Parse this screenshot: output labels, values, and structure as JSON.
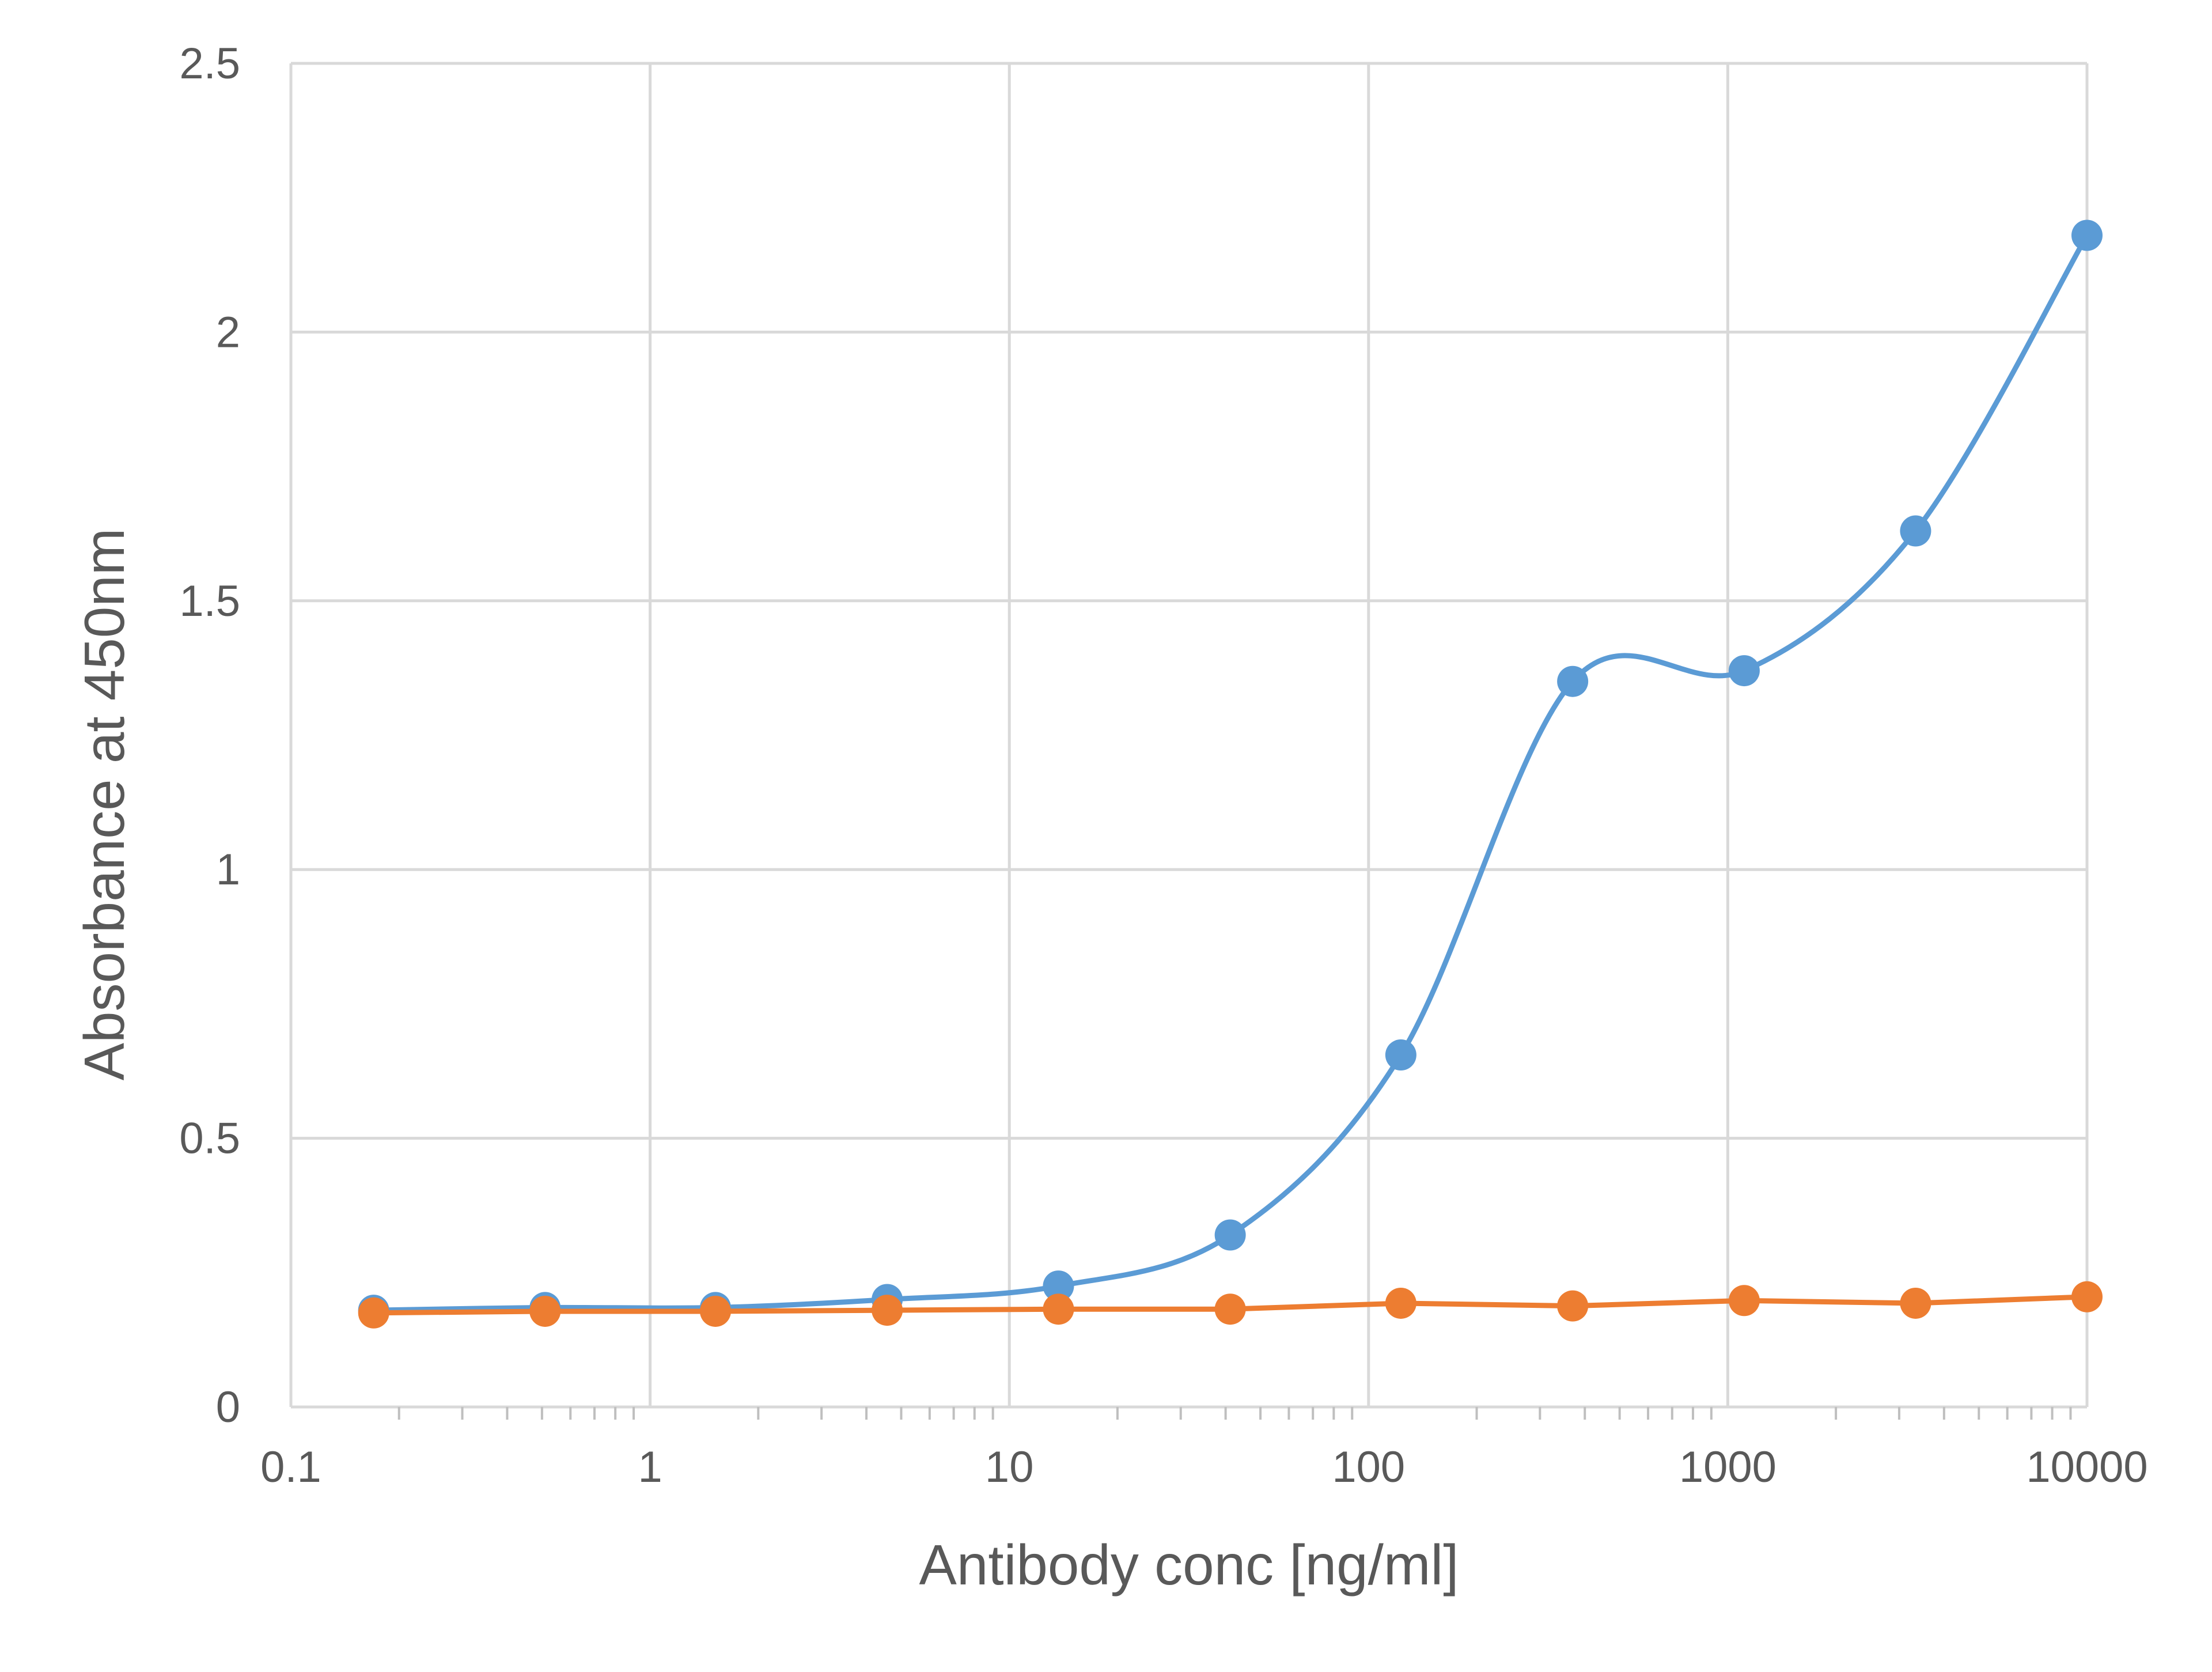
{
  "chart_data": {
    "type": "line",
    "title": "",
    "xlabel": "Antibody conc [ng/ml]",
    "ylabel": "Absorbance at 450nm",
    "x_scale": "log",
    "xlim": [
      0.1,
      10000
    ],
    "ylim": [
      0,
      2.5
    ],
    "x_ticks": [
      "0.1",
      "1",
      "10",
      "100",
      "1000",
      "10000"
    ],
    "y_ticks": [
      "0",
      "0.5",
      "1",
      "1.5",
      "2",
      "2.5"
    ],
    "grid": true,
    "legend": "none",
    "x": [
      0.17,
      0.51,
      1.52,
      4.57,
      13.7,
      41.2,
      123,
      370,
      1111,
      3333,
      10000
    ],
    "series": [
      {
        "color": "#5b9bd5",
        "smooth": true,
        "values": [
          0.18,
          0.185,
          0.185,
          0.2,
          0.225,
          0.32,
          0.655,
          1.35,
          1.37,
          1.63,
          2.18
        ]
      },
      {
        "color": "#ed7d31",
        "smooth": false,
        "values": [
          0.175,
          0.178,
          0.178,
          0.18,
          0.182,
          0.182,
          0.193,
          0.188,
          0.198,
          0.193,
          0.205
        ]
      }
    ]
  }
}
